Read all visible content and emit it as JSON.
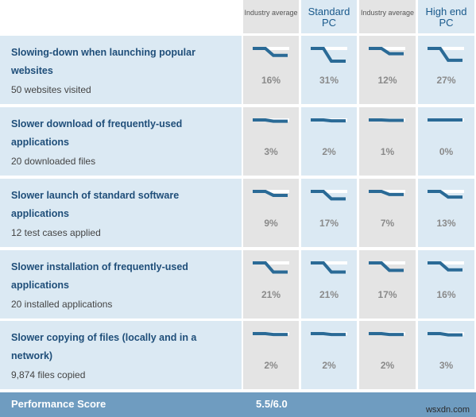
{
  "columns": [
    {
      "label": "Industry average",
      "type": "small"
    },
    {
      "label": "Standard PC",
      "type": "big"
    },
    {
      "label": "Industry average",
      "type": "small"
    },
    {
      "label": "High end PC",
      "type": "big"
    }
  ],
  "rows": [
    {
      "title": "Slowing-down when launching popular websites",
      "subtitle": "50 websites visited",
      "values": [
        "16%",
        "31%",
        "12%",
        "27%"
      ]
    },
    {
      "title": "Slower download of frequently-used applications",
      "subtitle": "20 downloaded files",
      "values": [
        "3%",
        "2%",
        "1%",
        "0%"
      ]
    },
    {
      "title": "Slower launch of standard software applications",
      "subtitle": "12 test cases applied",
      "values": [
        "9%",
        "17%",
        "7%",
        "13%"
      ]
    },
    {
      "title": "Slower installation of frequently-used applications",
      "subtitle": "20 installed applications",
      "values": [
        "21%",
        "21%",
        "17%",
        "16%"
      ]
    },
    {
      "title": "Slower copying of files (locally and in a network)",
      "subtitle": "9,874 files copied",
      "values": [
        "2%",
        "2%",
        "2%",
        "3%"
      ]
    }
  ],
  "footer": {
    "label": "Performance Score",
    "score": "5.5/6.0"
  },
  "watermark": "wsxdn.com",
  "colors": {
    "accent": "#2a6a96",
    "label_bg": "#dbe9f3",
    "gray_bg": "#e4e4e4",
    "footer_bg": "#6f9cc0"
  }
}
